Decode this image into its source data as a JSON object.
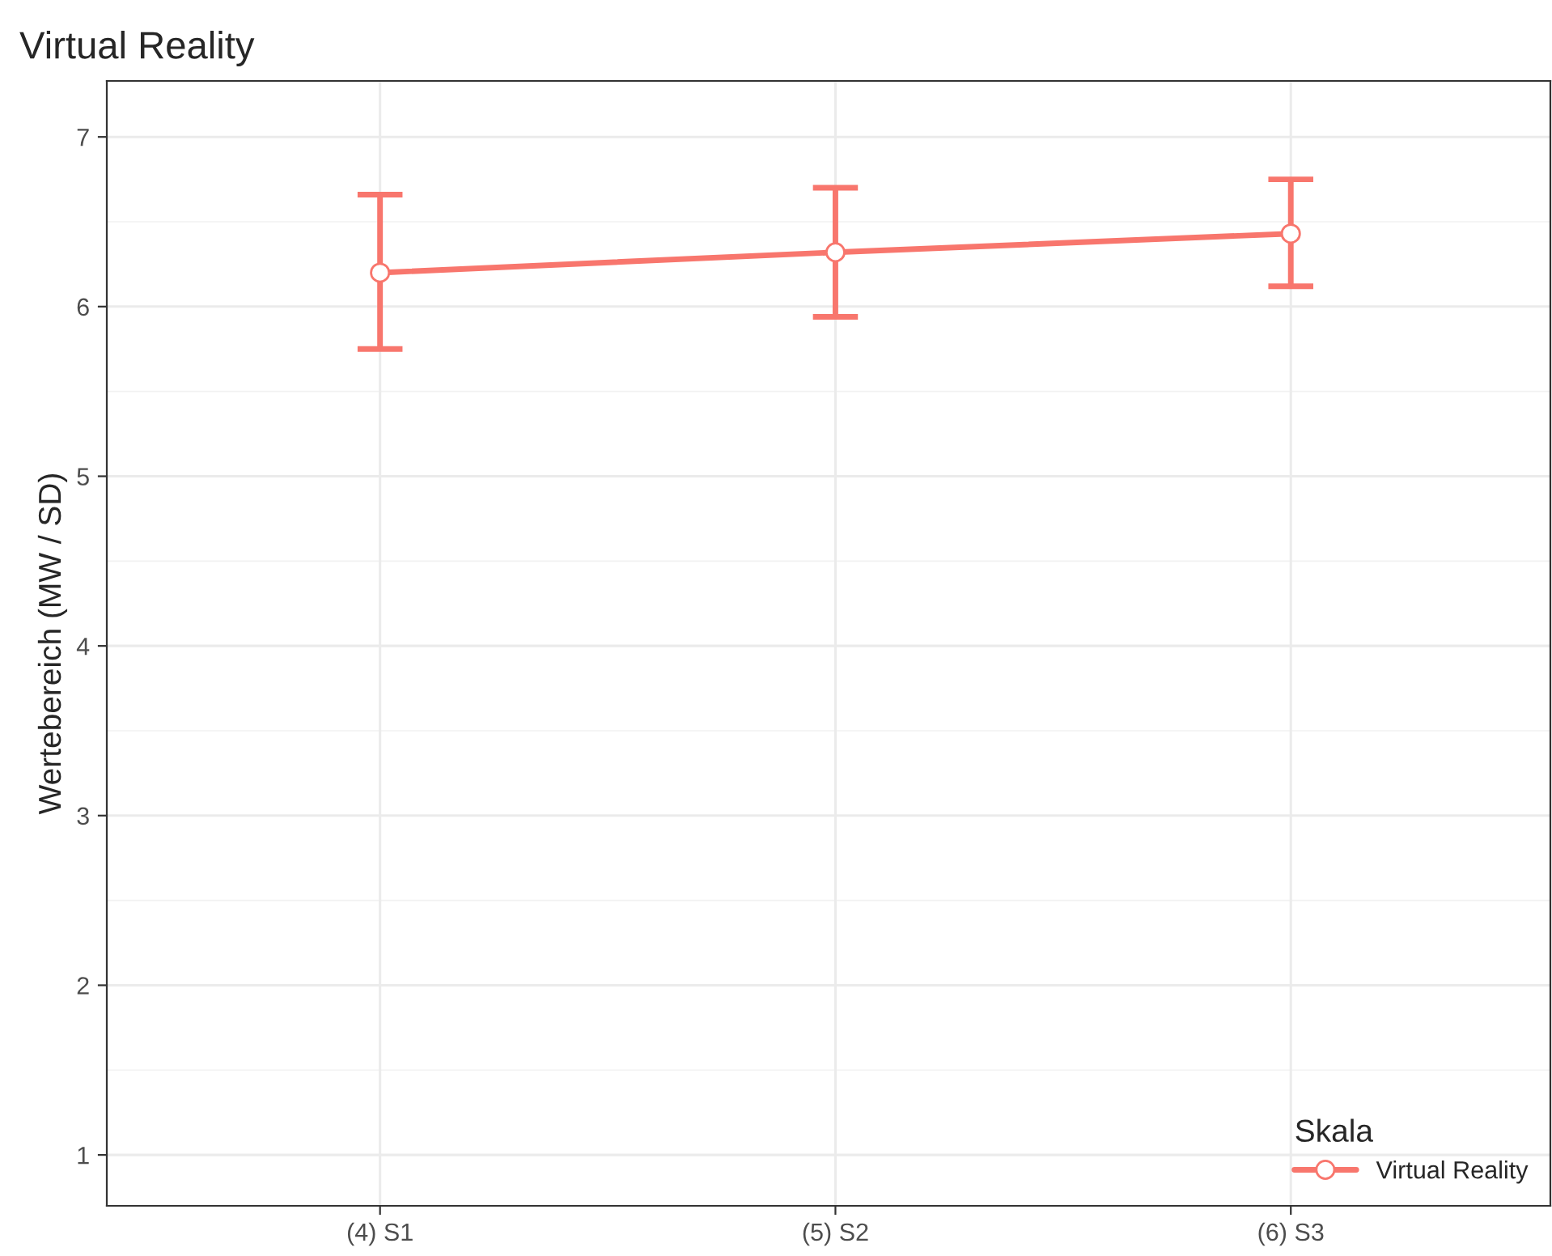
{
  "chart_data": {
    "type": "line",
    "title": "Virtual Reality",
    "ylabel": "Wertebereich (MW / SD)",
    "legend_title": "Skala",
    "categories": [
      "(4) S1",
      "(5) S2",
      "(6) S3"
    ],
    "series": [
      {
        "name": "Virtual Reality",
        "color": "#f8766d",
        "values": [
          6.2,
          6.32,
          6.43
        ],
        "errors": [
          [
            5.75,
            6.66
          ],
          [
            5.94,
            6.7
          ],
          [
            6.12,
            6.75
          ]
        ]
      }
    ],
    "ylim": [
      0.7,
      7.33
    ],
    "yticks": [
      1,
      2,
      3,
      4,
      5,
      6,
      7
    ],
    "grid": true,
    "legend": "bottom right",
    "marker": "circle",
    "line_style": "solid"
  }
}
